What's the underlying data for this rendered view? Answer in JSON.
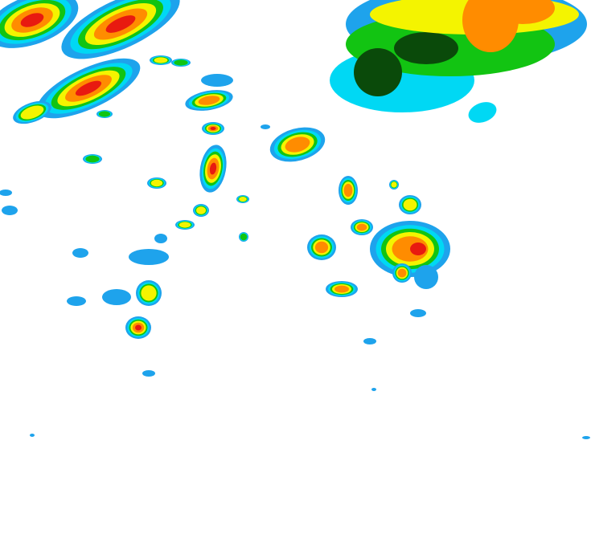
{
  "map": {
    "type": "weather-radar-reflectivity",
    "palette": {
      "light_blue": "#1ea3ec",
      "cyan": "#00d8f4",
      "green": "#12c412",
      "dark_green": "#0a4a0a",
      "yellow": "#f4f400",
      "orange": "#ff8c00",
      "red": "#e81a10"
    }
  }
}
